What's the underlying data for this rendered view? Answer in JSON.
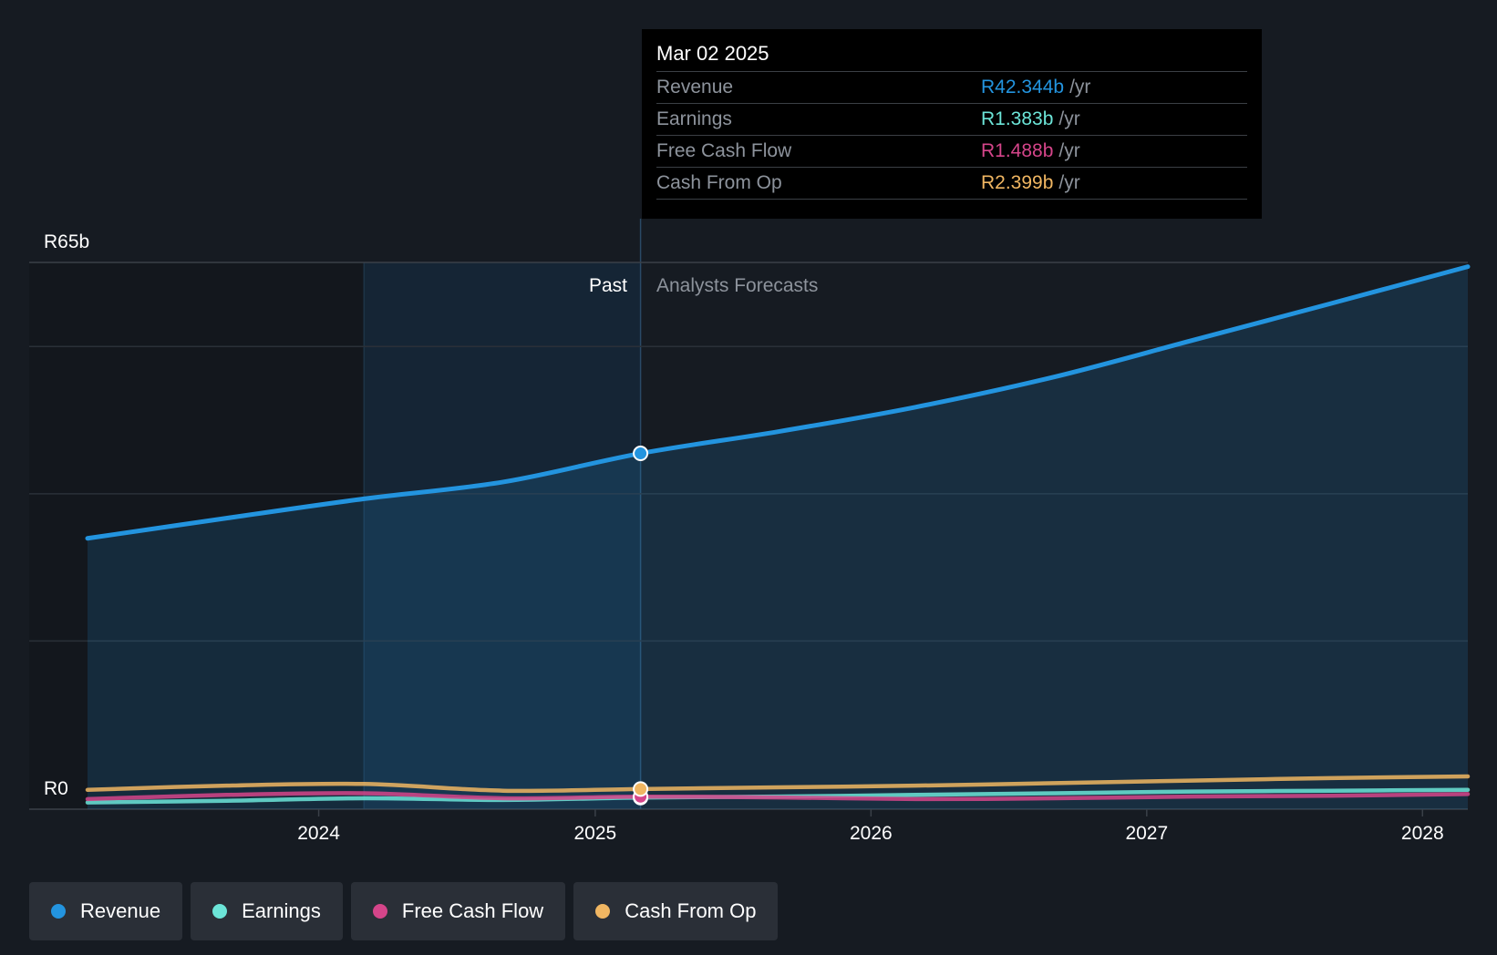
{
  "tooltip": {
    "date": "Mar 02 2025",
    "rows": [
      {
        "label": "Revenue",
        "value": "R42.344b",
        "unit": "/yr",
        "color": "#2394df"
      },
      {
        "label": "Earnings",
        "value": "R1.383b",
        "unit": "/yr",
        "color": "#6ce5d8"
      },
      {
        "label": "Free Cash Flow",
        "value": "R1.488b",
        "unit": "/yr",
        "color": "#d5458a"
      },
      {
        "label": "Cash From Op",
        "value": "R2.399b",
        "unit": "/yr",
        "color": "#f0b662"
      }
    ]
  },
  "legend": [
    {
      "label": "Revenue",
      "color": "#2394df"
    },
    {
      "label": "Earnings",
      "color": "#6ce5d8"
    },
    {
      "label": "Free Cash Flow",
      "color": "#d5458a"
    },
    {
      "label": "Cash From Op",
      "color": "#f0b662"
    }
  ],
  "chart_data": {
    "type": "area",
    "y_top_label": "R65b",
    "y_bottom_label": "R0",
    "ylim": [
      0,
      65
    ],
    "xlim": [
      "2023-03-01",
      "2028-03-01"
    ],
    "x_ticks": [
      "2024",
      "2025",
      "2026",
      "2027",
      "2028"
    ],
    "past_label": "Past",
    "forecast_label": "Analysts Forecasts",
    "past_start": "2024-03-01",
    "divider": "2025-03-02",
    "grid": true,
    "series": [
      {
        "name": "Revenue",
        "color": "#2394df",
        "points": [
          [
            "2023-03-01",
            32.2
          ],
          [
            "2023-09-01",
            34.6
          ],
          [
            "2024-03-01",
            36.9
          ],
          [
            "2024-09-01",
            38.9
          ],
          [
            "2025-03-02",
            42.3
          ],
          [
            "2025-09-01",
            44.9
          ],
          [
            "2026-03-01",
            47.8
          ],
          [
            "2026-09-01",
            51.4
          ],
          [
            "2027-03-01",
            55.7
          ],
          [
            "2027-09-01",
            60.1
          ],
          [
            "2028-03-01",
            64.5
          ]
        ]
      },
      {
        "name": "Earnings",
        "color": "#6ce5d8",
        "points": [
          [
            "2023-03-01",
            0.8
          ],
          [
            "2023-09-01",
            1.0
          ],
          [
            "2024-03-01",
            1.3
          ],
          [
            "2024-09-01",
            1.1
          ],
          [
            "2025-03-02",
            1.383
          ],
          [
            "2025-09-01",
            1.5
          ],
          [
            "2026-03-01",
            1.7
          ],
          [
            "2026-09-01",
            1.9
          ],
          [
            "2027-03-01",
            2.1
          ],
          [
            "2027-09-01",
            2.2
          ],
          [
            "2028-03-01",
            2.3
          ]
        ]
      },
      {
        "name": "Free Cash Flow",
        "color": "#d5458a",
        "points": [
          [
            "2023-03-01",
            1.2
          ],
          [
            "2023-09-01",
            1.7
          ],
          [
            "2024-03-01",
            1.9
          ],
          [
            "2024-09-01",
            1.3
          ],
          [
            "2025-03-02",
            1.488
          ],
          [
            "2025-09-01",
            1.4
          ],
          [
            "2026-03-01",
            1.2
          ],
          [
            "2026-09-01",
            1.3
          ],
          [
            "2027-03-01",
            1.5
          ],
          [
            "2027-09-01",
            1.6
          ],
          [
            "2028-03-01",
            1.8
          ]
        ]
      },
      {
        "name": "Cash From Op",
        "color": "#f0b662",
        "points": [
          [
            "2023-03-01",
            2.3
          ],
          [
            "2023-09-01",
            2.8
          ],
          [
            "2024-03-01",
            3.0
          ],
          [
            "2024-09-01",
            2.2
          ],
          [
            "2025-03-02",
            2.399
          ],
          [
            "2025-09-01",
            2.6
          ],
          [
            "2026-03-01",
            2.8
          ],
          [
            "2026-09-01",
            3.1
          ],
          [
            "2027-03-01",
            3.4
          ],
          [
            "2027-09-01",
            3.7
          ],
          [
            "2028-03-01",
            3.9
          ]
        ]
      }
    ]
  }
}
